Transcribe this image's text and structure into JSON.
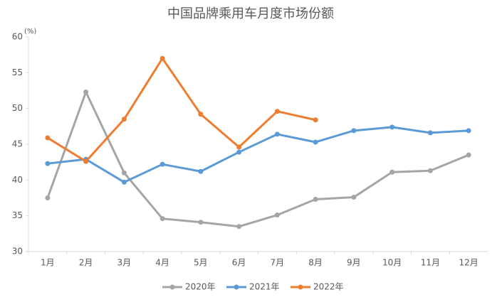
{
  "chart_data": {
    "type": "line",
    "title": "中国品牌乘用车月度市场份额",
    "ylabel": "(%)",
    "categories": [
      "1月",
      "2月",
      "3月",
      "4月",
      "5月",
      "6月",
      "7月",
      "8月",
      "9月",
      "10月",
      "11月",
      "12月"
    ],
    "ylim": [
      30,
      60
    ],
    "yticks": [
      30,
      35,
      40,
      45,
      50,
      55,
      60
    ],
    "grid": false,
    "legend": "bottom",
    "series": [
      {
        "name": "2020年",
        "color": "#a5a5a5",
        "values": [
          37.5,
          52.3,
          41.0,
          34.6,
          34.1,
          33.5,
          35.1,
          37.3,
          37.6,
          41.1,
          41.3,
          43.5
        ]
      },
      {
        "name": "2021年",
        "color": "#5b9bd5",
        "values": [
          42.3,
          42.9,
          39.7,
          42.2,
          41.2,
          43.9,
          46.4,
          45.3,
          46.9,
          47.4,
          46.6,
          46.9
        ]
      },
      {
        "name": "2022年",
        "color": "#ed7d31",
        "values": [
          45.9,
          42.6,
          48.5,
          57.0,
          49.2,
          44.6,
          49.6,
          48.4,
          null,
          null,
          null,
          null
        ]
      }
    ]
  }
}
